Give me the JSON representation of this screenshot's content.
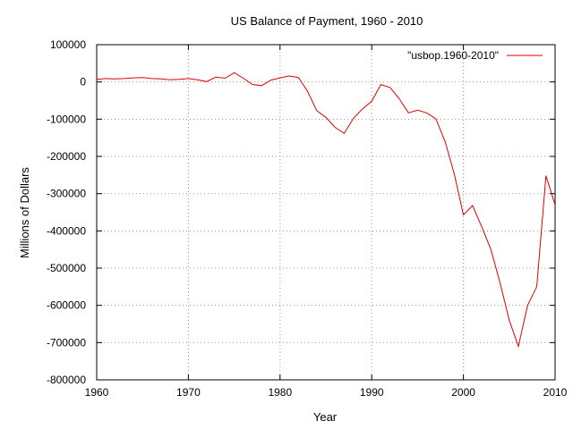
{
  "chart_data": {
    "type": "line",
    "title": "US Balance of Payment, 1960 - 2010",
    "xlabel": "Year",
    "ylabel": "Millions of Dollars",
    "xlim": [
      1960,
      2010
    ],
    "ylim": [
      -800000,
      100000
    ],
    "x_ticks": [
      1960,
      1970,
      1980,
      1990,
      2000,
      2010
    ],
    "y_ticks": [
      100000,
      0,
      -100000,
      -200000,
      -300000,
      -400000,
      -500000,
      -600000,
      -700000,
      -800000
    ],
    "x_tick_labels": [
      "1960",
      "1970",
      "1980",
      "1990",
      "2000",
      "2010"
    ],
    "y_tick_labels": [
      "100000",
      "0",
      "-100000",
      "-200000",
      "-300000",
      "-400000",
      "-500000",
      "-600000",
      "-700000",
      "-800000"
    ],
    "grid": true,
    "legend_position": "top-right",
    "series": [
      {
        "name": "\"usbop.1960-2010\"",
        "color": "#e00000",
        "x": [
          1960,
          1961,
          1962,
          1963,
          1964,
          1965,
          1966,
          1967,
          1968,
          1969,
          1970,
          1971,
          1972,
          1973,
          1974,
          1975,
          1976,
          1977,
          1978,
          1979,
          1980,
          1981,
          1982,
          1983,
          1984,
          1985,
          1986,
          1987,
          1988,
          1989,
          1990,
          1991,
          1992,
          1993,
          1994,
          1995,
          1996,
          1997,
          1998,
          1999,
          2000,
          2001,
          2002,
          2003,
          2004,
          2005,
          2006,
          2007,
          2008,
          2009,
          2010
        ],
        "y": [
          7000,
          9000,
          8000,
          9000,
          11000,
          12000,
          9000,
          8000,
          6000,
          7000,
          9000,
          6000,
          1000,
          13000,
          10000,
          25000,
          10000,
          -7000,
          -10000,
          5000,
          11000,
          16000,
          12000,
          -25000,
          -77000,
          -95000,
          -122000,
          -138000,
          -98000,
          -72000,
          -52000,
          -7000,
          -15000,
          -45000,
          -83000,
          -76000,
          -83000,
          -99000,
          -160000,
          -247000,
          -357000,
          -332000,
          -389000,
          -450000,
          -540000,
          -640000,
          -710000,
          -600000,
          -550000,
          -252000,
          -330000
        ]
      }
    ]
  }
}
